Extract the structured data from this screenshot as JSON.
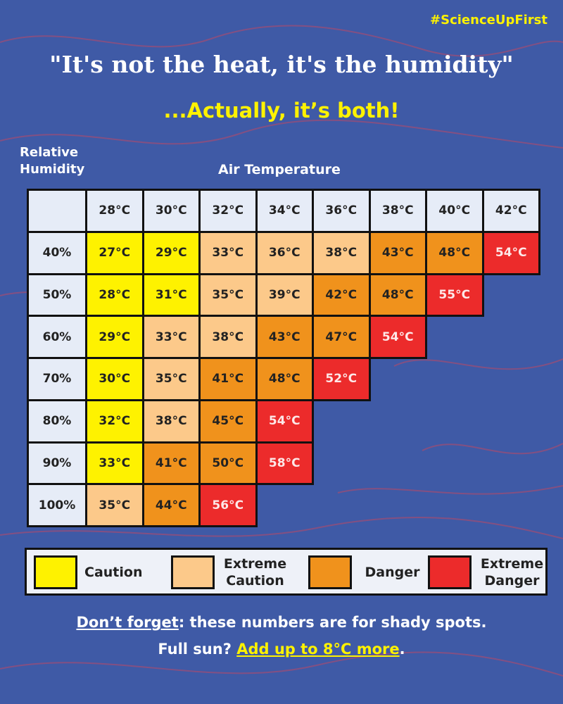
{
  "hashtag": "#ScienceUpFirst",
  "title": "\"It's not the heat, it's the humidity\"",
  "subtitle": "...Actually, it’s both!",
  "row_axis_label": "Relative Humidity",
  "column_axis_label": "Air Temperature",
  "table": {
    "columns": [
      "28°C",
      "30°C",
      "32°C",
      "34°C",
      "36°C",
      "38°C",
      "40°C",
      "42°C"
    ],
    "rows": [
      {
        "label": "40%",
        "cells": [
          {
            "text": "27°C",
            "color": "#fef200"
          },
          {
            "text": "29°C",
            "color": "#fef200"
          },
          {
            "text": "33°C",
            "color": "#fcc98a"
          },
          {
            "text": "36°C",
            "color": "#fcc98a"
          },
          {
            "text": "38°C",
            "color": "#fcc98a"
          },
          {
            "text": "43°C",
            "color": "#f0921c"
          },
          {
            "text": "48°C",
            "color": "#f0921c"
          },
          {
            "text": "54°C",
            "color": "#ec2b2b"
          }
        ]
      },
      {
        "label": "50%",
        "cells": [
          {
            "text": "28°C",
            "color": "#fef200"
          },
          {
            "text": "31°C",
            "color": "#fef200"
          },
          {
            "text": "35°C",
            "color": "#fcc98a"
          },
          {
            "text": "39°C",
            "color": "#fcc98a"
          },
          {
            "text": "42°C",
            "color": "#f0921c"
          },
          {
            "text": "48°C",
            "color": "#f0921c"
          },
          {
            "text": "55°C",
            "color": "#ec2b2b"
          }
        ]
      },
      {
        "label": "60%",
        "cells": [
          {
            "text": "29°C",
            "color": "#fef200"
          },
          {
            "text": "33°C",
            "color": "#fcc98a"
          },
          {
            "text": "38°C",
            "color": "#fcc98a"
          },
          {
            "text": "43°C",
            "color": "#f0921c"
          },
          {
            "text": "47°C",
            "color": "#f0921c"
          },
          {
            "text": "54°C",
            "color": "#ec2b2b"
          }
        ]
      },
      {
        "label": "70%",
        "cells": [
          {
            "text": "30°C",
            "color": "#fef200"
          },
          {
            "text": "35°C",
            "color": "#fcc98a"
          },
          {
            "text": "41°C",
            "color": "#f0921c"
          },
          {
            "text": "48°C",
            "color": "#f0921c"
          },
          {
            "text": "52°C",
            "color": "#ec2b2b"
          }
        ]
      },
      {
        "label": "80%",
        "cells": [
          {
            "text": "32°C",
            "color": "#fef200"
          },
          {
            "text": "38°C",
            "color": "#fcc98a"
          },
          {
            "text": "45°C",
            "color": "#f0921c"
          },
          {
            "text": "54°C",
            "color": "#ec2b2b"
          }
        ]
      },
      {
        "label": "90%",
        "cells": [
          {
            "text": "33°C",
            "color": "#fef200"
          },
          {
            "text": "41°C",
            "color": "#f0921c"
          },
          {
            "text": "50°C",
            "color": "#f0921c"
          },
          {
            "text": "58°C",
            "color": "#ec2b2b"
          }
        ]
      },
      {
        "label": "100%",
        "cells": [
          {
            "text": "35°C",
            "color": "#fcc98a"
          },
          {
            "text": "44°C",
            "color": "#f0921c"
          },
          {
            "text": "56°C",
            "color": "#ec2b2b"
          }
        ]
      }
    ]
  },
  "legend": [
    {
      "name": "Caution",
      "color": "#fef200"
    },
    {
      "name": "Extreme Caution",
      "color": "#fcc98a"
    },
    {
      "name": "Danger",
      "color": "#f0921c"
    },
    {
      "name": "Extreme Danger",
      "color": "#ec2b2b"
    }
  ],
  "footer": {
    "line1": [
      "Don’t forget",
      ": these numbers are for shady spots."
    ],
    "line2": [
      "Full sun? ",
      "Add up to 8°C more",
      "."
    ]
  }
}
